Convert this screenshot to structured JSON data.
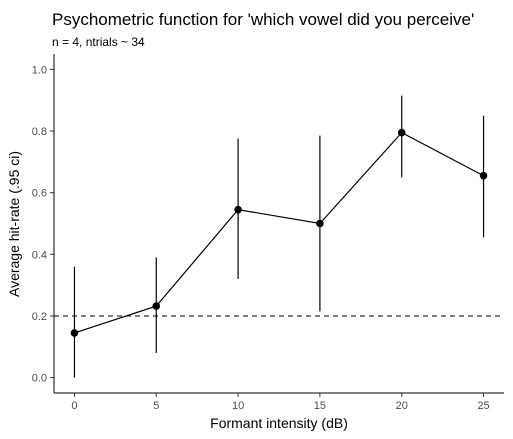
{
  "chart_data": {
    "type": "line",
    "title": "Psychometric function for 'which vowel did you perceive'",
    "subtitle": "n = 4, ntrials ~ 34",
    "xlabel": "Formant intensity (dB)",
    "ylabel": "Average hit-rate (.95 ci)",
    "xlim": [
      -1.25,
      26.25
    ],
    "ylim": [
      -0.05,
      1.05
    ],
    "x_ticks": [
      0,
      5,
      10,
      15,
      20,
      25
    ],
    "y_ticks": [
      0.0,
      0.2,
      0.4,
      0.6,
      0.8,
      1.0
    ],
    "x_tick_labels": [
      "0",
      "5",
      "10",
      "15",
      "20",
      "25"
    ],
    "y_tick_labels": [
      "0.0",
      "0.2",
      "0.4",
      "0.6",
      "0.8",
      "1.0"
    ],
    "grid": false,
    "reference_line": {
      "y": 0.2,
      "style": "dashed"
    },
    "series": [
      {
        "x": [
          0,
          5,
          10,
          15,
          20,
          25
        ],
        "y": [
          0.145,
          0.232,
          0.545,
          0.5,
          0.795,
          0.655
        ],
        "ci_low": [
          0.0,
          0.08,
          0.32,
          0.215,
          0.65,
          0.455
        ],
        "ci_high": [
          0.36,
          0.39,
          0.775,
          0.785,
          0.915,
          0.85
        ],
        "color": "#000000"
      }
    ]
  }
}
